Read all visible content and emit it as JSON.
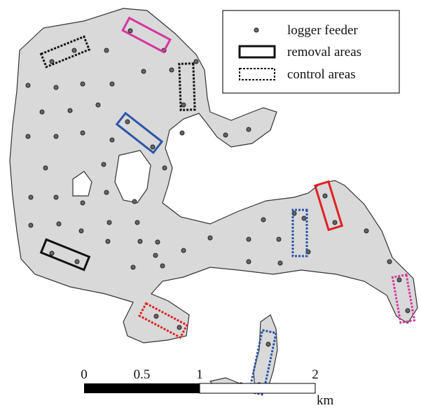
{
  "legend": {
    "items": [
      "logger feeder",
      "removal areas",
      "control areas"
    ]
  },
  "scale_bar": {
    "ticks": [
      0,
      0.5,
      1,
      2
    ],
    "unit": "km"
  }
}
